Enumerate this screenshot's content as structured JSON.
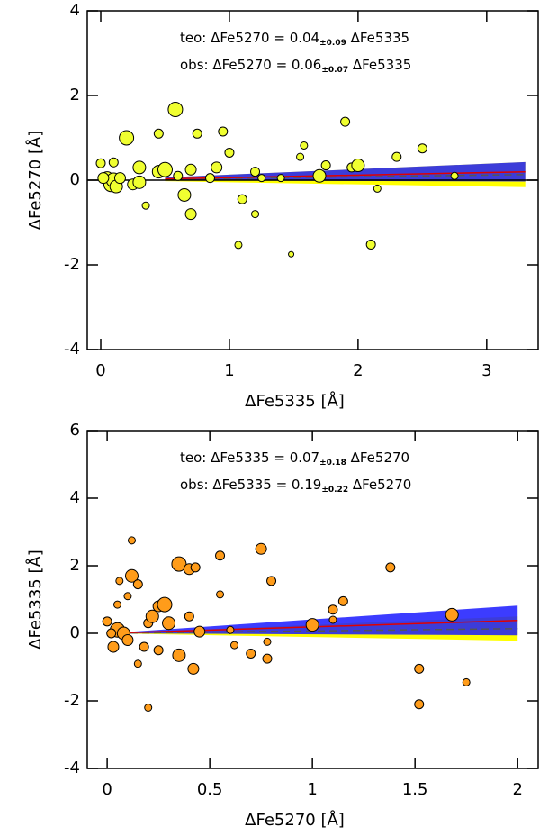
{
  "chart_data": [
    {
      "type": "scatter",
      "xlabel": "ΔFe5335   [Å]",
      "ylabel": "ΔFe5270   [Å]",
      "xlim": [
        -0.105,
        3.4
      ],
      "ylim": [
        -4,
        4
      ],
      "xticks": [
        0,
        1,
        2,
        3
      ],
      "yticks": [
        -4,
        -2,
        0,
        2,
        4
      ],
      "zero_line": true,
      "series": [
        {
          "color": "#f0ff30",
          "x": [
            0.2,
            0.58,
            0.3,
            0.45,
            0.5,
            0.05,
            0.08,
            0.1,
            0.12,
            0.15,
            0.02,
            0.0,
            0.1,
            0.25,
            0.3,
            0.35,
            0.45,
            0.65,
            0.7,
            0.75,
            0.7,
            0.9,
            0.95,
            1.0,
            1.1,
            1.2,
            1.07,
            1.2,
            1.25,
            1.4,
            1.48,
            1.55,
            1.58,
            1.7,
            1.75,
            1.9,
            1.95,
            2.0,
            2.1,
            2.15,
            2.3,
            2.5,
            2.75,
            0.6,
            0.85
          ],
          "values": [
            1.0,
            1.67,
            0.3,
            0.2,
            0.25,
            0.05,
            -0.1,
            0.0,
            -0.15,
            0.05,
            0.05,
            0.4,
            0.42,
            -0.1,
            -0.05,
            -0.6,
            1.1,
            -0.35,
            0.25,
            1.1,
            -0.8,
            0.3,
            1.15,
            0.65,
            -0.45,
            -0.8,
            -1.53,
            0.2,
            0.05,
            0.05,
            -1.75,
            0.55,
            0.82,
            0.1,
            0.35,
            1.38,
            0.3,
            0.35,
            -1.52,
            -0.2,
            0.55,
            0.75,
            0.1,
            0.1,
            0.05
          ],
          "sizes": [
            8,
            8,
            7,
            7,
            8,
            7,
            8,
            8,
            7,
            6,
            6,
            5,
            5,
            6,
            7,
            4,
            5,
            7,
            6,
            5,
            6,
            6,
            5,
            5,
            5,
            4,
            4,
            5,
            4,
            4,
            3,
            4,
            4,
            7,
            5,
            5,
            5,
            7,
            5,
            4,
            5,
            5,
            4,
            5,
            5
          ]
        }
      ],
      "fit_x": [
        0.5,
        3.3
      ],
      "fits": [
        {
          "prefix": "teo:  ΔFe5270  =  ",
          "slope": 0.04,
          "error": {
            "value": 0.09,
            "label": "±0.09"
          },
          "suffix": "  ΔFe5335",
          "band_color": "#ffff00",
          "line_color": "#555555",
          "dashed": true
        },
        {
          "prefix": "obs:  ΔFe5270  =  ",
          "slope": 0.06,
          "error": {
            "value": 0.07,
            "label": "±0.07"
          },
          "suffix": "  ΔFe5335",
          "band_color": "#1a1aff",
          "line_color": "#e00000",
          "dashed": false
        }
      ]
    },
    {
      "type": "scatter",
      "xlabel": "ΔFe5270   [Å]",
      "ylabel": "ΔFe5335   [Å]",
      "xlim": [
        -0.097,
        2.1
      ],
      "ylim": [
        -4,
        6
      ],
      "xticks": [
        0,
        0.5,
        1,
        1.5,
        2
      ],
      "yticks": [
        -4,
        -2,
        0,
        2,
        4,
        6
      ],
      "zero_line": false,
      "series": [
        {
          "color": "#ff9c1a",
          "x": [
            0.12,
            0.12,
            0.15,
            0.05,
            0.08,
            0.1,
            0.03,
            0.0,
            0.02,
            0.2,
            0.22,
            0.25,
            0.28,
            0.3,
            0.35,
            0.4,
            0.43,
            0.35,
            0.4,
            0.42,
            0.45,
            0.2,
            0.25,
            0.18,
            0.15,
            0.55,
            0.55,
            0.6,
            0.62,
            0.7,
            0.75,
            0.78,
            0.8,
            0.78,
            1.0,
            1.1,
            1.15,
            1.1,
            1.38,
            1.52,
            1.52,
            1.68,
            1.75,
            0.05,
            0.1,
            0.06
          ],
          "values": [
            2.75,
            1.7,
            1.45,
            0.1,
            0.0,
            -0.2,
            -0.4,
            0.35,
            0.0,
            0.3,
            0.5,
            0.8,
            0.85,
            0.3,
            2.05,
            1.9,
            1.95,
            -0.65,
            0.5,
            -1.05,
            0.05,
            -2.2,
            -0.5,
            -0.4,
            -0.9,
            2.3,
            1.15,
            0.1,
            -0.35,
            -0.6,
            2.5,
            -0.75,
            1.55,
            -0.25,
            0.25,
            0.7,
            0.95,
            0.4,
            1.95,
            -1.05,
            -2.1,
            0.55,
            -1.45,
            0.85,
            1.1,
            1.55
          ],
          "sizes": [
            4,
            7,
            5,
            8,
            7,
            6,
            6,
            5,
            5,
            5,
            7,
            6,
            8,
            7,
            8,
            6,
            5,
            7,
            5,
            6,
            6,
            4,
            5,
            5,
            4,
            5,
            4,
            4,
            4,
            5,
            6,
            5,
            5,
            4,
            7,
            5,
            5,
            4,
            5,
            5,
            5,
            7,
            4,
            4,
            4,
            4
          ]
        }
      ],
      "fit_x": [
        0,
        2.0
      ],
      "fits": [
        {
          "prefix": "teo:  ΔFe5335  =  ",
          "slope": 0.07,
          "error": {
            "value": 0.18,
            "label": "±0.18"
          },
          "suffix": "  ΔFe5270",
          "band_color": "#ffff00",
          "line_color": "#555555",
          "dashed": true
        },
        {
          "prefix": "obs:  ΔFe5335  =  ",
          "slope": 0.19,
          "error": {
            "value": 0.22,
            "label": "±0.22"
          },
          "suffix": "  ΔFe5270",
          "band_color": "#1a1aff",
          "line_color": "#e00000",
          "dashed": false
        }
      ]
    }
  ]
}
